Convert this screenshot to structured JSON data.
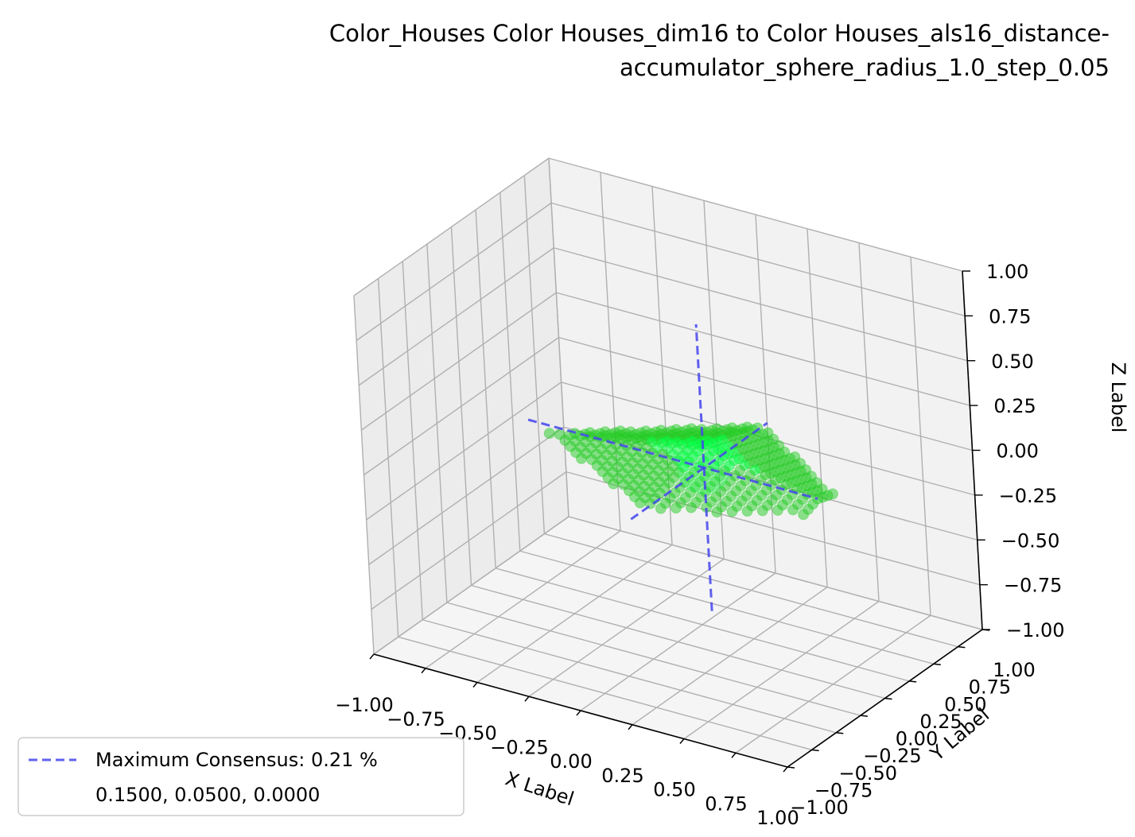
{
  "chart_data": {
    "type": "scatter3d",
    "title_lines": [
      "Color_Houses Color Houses_dim16 to Color Houses_als16_distance-",
      "accumulator_sphere_radius_1.0_step_0.05"
    ],
    "xlabel": "X Label",
    "ylabel": "Y Label",
    "zlabel": "Z Label",
    "xlim": [
      -1.0,
      1.0
    ],
    "ylim": [
      -1.0,
      1.0
    ],
    "zlim": [
      -1.0,
      1.0
    ],
    "x_ticks": [
      "−1.00",
      "−0.75",
      "−0.50",
      "−0.25",
      "0.00",
      "0.25",
      "0.50",
      "0.75",
      "1.00"
    ],
    "y_ticks": [
      "−1.00",
      "−0.75",
      "−0.50",
      "−0.25",
      "0.00",
      "0.25",
      "0.50",
      "0.75",
      "1.00"
    ],
    "z_ticks": [
      "−1.00",
      "−0.75",
      "−0.50",
      "−0.25",
      "0.00",
      "0.25",
      "0.50",
      "0.75",
      "1.00"
    ],
    "tick_values": [
      -1.0,
      -0.75,
      -0.5,
      -0.25,
      0.0,
      0.25,
      0.5,
      0.75,
      1.0
    ],
    "grid": true,
    "point_color": "#22cc22",
    "center_highlight_color": "#00ff44",
    "consensus_line_color": "#4444ee",
    "legend": {
      "placement": "lower-left",
      "entries": [
        "Maximum Consensus: 0.21 %",
        "0.1500, 0.0500, 0.0000"
      ]
    },
    "consensus_point": {
      "x": 0.15,
      "y": 0.05,
      "z": 0.0
    },
    "consensus_lines": {
      "x_range": [
        -0.7,
        0.7
      ],
      "y_range": [
        -0.7,
        0.7
      ],
      "z_range": [
        -0.8,
        0.8
      ]
    },
    "point_cloud": {
      "x_range": [
        -0.7,
        0.7
      ],
      "y_range": [
        -0.6,
        0.6
      ],
      "z_range": [
        -0.15,
        0.15
      ],
      "step": 0.05
    }
  }
}
